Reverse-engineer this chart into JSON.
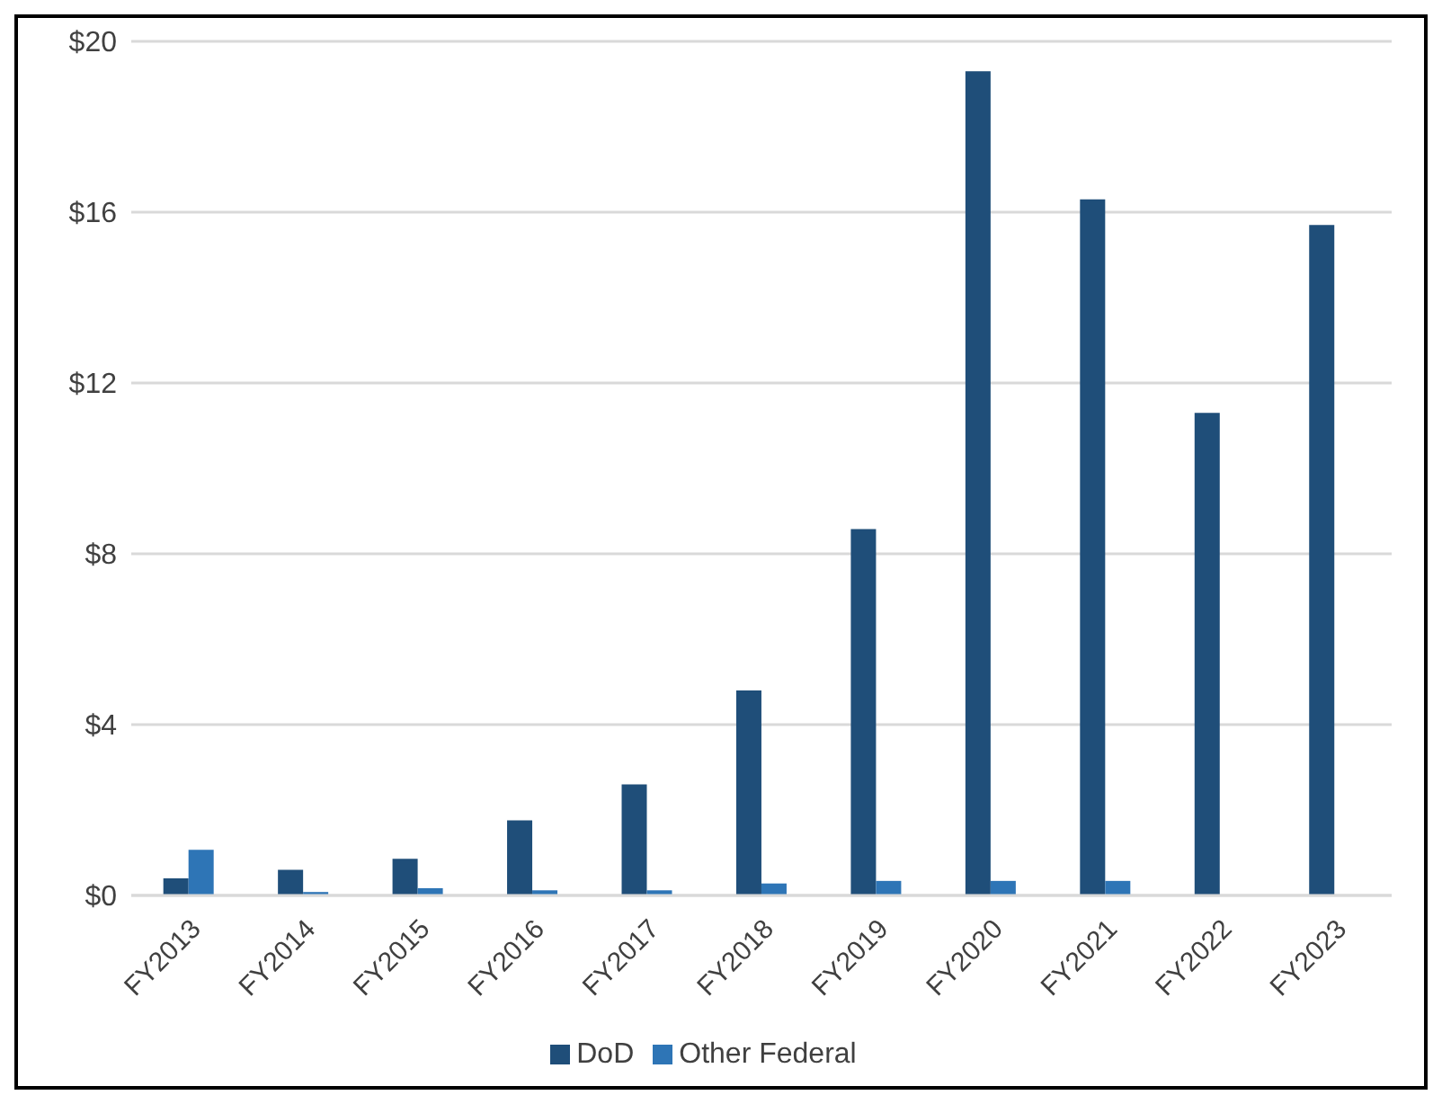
{
  "chart_data": {
    "type": "bar",
    "categories": [
      "FY2013",
      "FY2014",
      "FY2015",
      "FY2016",
      "FY2017",
      "FY2018",
      "FY2019",
      "FY2020",
      "FY2021",
      "FY2022",
      "FY2023"
    ],
    "series": [
      {
        "name": "DoD",
        "color": "#1f4e79",
        "values": [
          0.4,
          0.6,
          0.86,
          1.76,
          2.6,
          4.8,
          8.58,
          19.3,
          16.3,
          11.3,
          15.7
        ]
      },
      {
        "name": "Other Federal",
        "color": "#2e75b6",
        "values": [
          1.07,
          0.08,
          0.17,
          0.12,
          0.12,
          0.28,
          0.34,
          0.34,
          0.34,
          0,
          0
        ]
      }
    ],
    "ylim": [
      0,
      20
    ],
    "yticks": [
      {
        "value": 0,
        "label": "$0"
      },
      {
        "value": 4,
        "label": "$4"
      },
      {
        "value": 8,
        "label": "$8"
      },
      {
        "value": 12,
        "label": "$12"
      },
      {
        "value": 16,
        "label": "$16"
      },
      {
        "value": 20,
        "label": "$20"
      }
    ],
    "grid": "y",
    "legend": "bottom"
  }
}
